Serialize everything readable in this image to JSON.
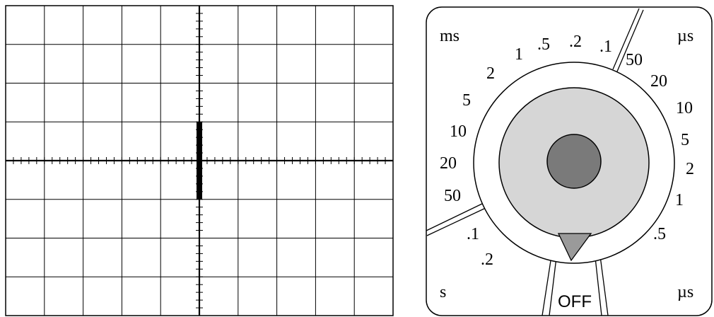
{
  "scope_screen": {
    "divisions_x": 10,
    "divisions_y": 8,
    "minor_ticks_per_division": 5,
    "trace_vertical_span_divisions": 2
  },
  "timebase_dial": {
    "unit_labels": {
      "ms_top": "ms",
      "us_top": "µs",
      "s_bottom": "s",
      "us_bottom": "µs"
    },
    "off_label": "OFF",
    "dial_labels": [
      {
        "id": "ms-1",
        "text": "1"
      },
      {
        "id": "ms-0.5",
        "text": ".5"
      },
      {
        "id": "ms-0.2",
        "text": ".2"
      },
      {
        "id": "ms-0.1",
        "text": ".1"
      },
      {
        "id": "ms-2",
        "text": "2"
      },
      {
        "id": "ms-5",
        "text": "5"
      },
      {
        "id": "ms-10",
        "text": "10"
      },
      {
        "id": "ms-20",
        "text": "20"
      },
      {
        "id": "ms-50",
        "text": "50"
      },
      {
        "id": "s-0.1",
        "text": ".1"
      },
      {
        "id": "s-0.2",
        "text": ".2"
      },
      {
        "id": "us-50",
        "text": "50"
      },
      {
        "id": "us-20",
        "text": "20"
      },
      {
        "id": "us-10",
        "text": "10"
      },
      {
        "id": "us-5",
        "text": "5"
      },
      {
        "id": "us-2",
        "text": "2"
      },
      {
        "id": "us-1",
        "text": "1"
      },
      {
        "id": "us-0.5",
        "text": ".5"
      }
    ],
    "colors": {
      "outer_knob": "#d6d6d6",
      "inner_knob": "#7a7a7a",
      "pointer": "#9a9a9a",
      "line": "#000000"
    }
  }
}
